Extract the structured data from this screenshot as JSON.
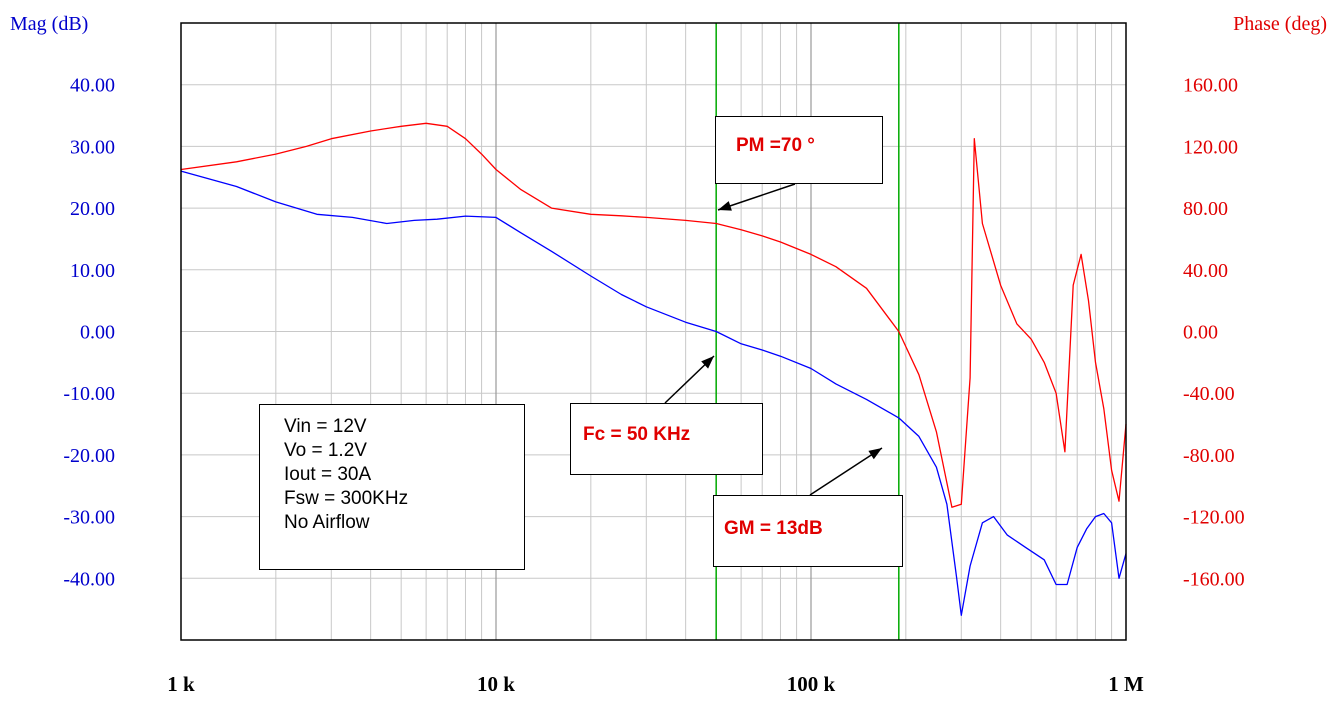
{
  "chart_data": {
    "type": "line",
    "title": "",
    "xlabel": "",
    "x_scale": "log",
    "x_range": [
      1000,
      1000000
    ],
    "x_ticks": [
      "1 k",
      "10 k",
      "100 k",
      "1 M"
    ],
    "left_axis": {
      "label": "Mag (dB)",
      "range": [
        -50,
        50
      ],
      "ticks": [
        "40.00",
        "30.00",
        "20.00",
        "10.00",
        "0.00",
        "-10.00",
        "-20.00",
        "-30.00",
        "-40.00"
      ],
      "color": "#0000cc"
    },
    "right_axis": {
      "label": "Phase (deg)",
      "range": [
        -200,
        200
      ],
      "ticks": [
        "160.00",
        "120.00",
        "80.00",
        "40.00",
        "0.00",
        "-40.00",
        "-80.00",
        "-120.00",
        "-160.00"
      ],
      "color": "#e00000"
    },
    "grid": true,
    "vertical_markers": [
      {
        "x": 50000,
        "color": "#00aa00"
      },
      {
        "x": 190000,
        "color": "#00aa00"
      }
    ],
    "series": [
      {
        "axis": "left",
        "color": "#0000ff",
        "x": [
          1000,
          1500,
          2000,
          2700,
          3500,
          4500,
          5500,
          6500,
          8000,
          10000,
          12000,
          15000,
          20000,
          25000,
          30000,
          40000,
          50000,
          60000,
          70000,
          80000,
          100000,
          120000,
          150000,
          190000,
          220000,
          250000,
          270000,
          290000,
          300000,
          320000,
          350000,
          380000,
          420000,
          480000,
          550000,
          600000,
          650000,
          700000,
          750000,
          800000,
          850000,
          900000,
          950000,
          1000000
        ],
        "y": [
          26,
          23.5,
          21,
          19,
          18.5,
          17.5,
          18,
          18.2,
          18.7,
          18.5,
          16,
          13,
          9,
          6,
          4,
          1.5,
          0,
          -2,
          -3,
          -4,
          -6,
          -8.5,
          -11,
          -14,
          -17,
          -22,
          -28,
          -40,
          -46,
          -38,
          -31,
          -30,
          -33,
          -35,
          -37,
          -41,
          -41,
          -35,
          -32,
          -30,
          -29.5,
          -31,
          -40,
          -36
        ]
      },
      {
        "axis": "right",
        "color": "#ff0000",
        "x": [
          1000,
          1500,
          2000,
          2500,
          3000,
          4000,
          5000,
          6000,
          7000,
          8000,
          9000,
          10000,
          12000,
          15000,
          20000,
          25000,
          30000,
          40000,
          50000,
          60000,
          70000,
          80000,
          100000,
          120000,
          150000,
          190000,
          220000,
          250000,
          280000,
          300000,
          320000,
          330000,
          350000,
          400000,
          450000,
          500000,
          550000,
          600000,
          640000,
          680000,
          720000,
          760000,
          800000,
          850000,
          900000,
          950000,
          1000000
        ],
        "y": [
          105,
          110,
          115,
          120,
          125,
          130,
          133,
          135,
          133,
          125,
          115,
          105,
          92,
          80,
          76,
          75,
          74,
          72,
          70,
          66,
          62,
          58,
          50,
          42,
          28,
          0,
          -28,
          -65,
          -114,
          -112,
          -30,
          125,
          70,
          30,
          5,
          -5,
          -20,
          -40,
          -78,
          30,
          50,
          20,
          -20,
          -50,
          -90,
          -110,
          -60
        ]
      }
    ],
    "annotations": {
      "pm": "PM =70 °",
      "fc": "Fc = 50 KHz",
      "gm": "GM = 13dB",
      "conditions": [
        "Vin = 12V",
        "Vo = 1.2V",
        "Iout = 30A",
        "Fsw = 300KHz",
        "No Airflow"
      ]
    }
  }
}
